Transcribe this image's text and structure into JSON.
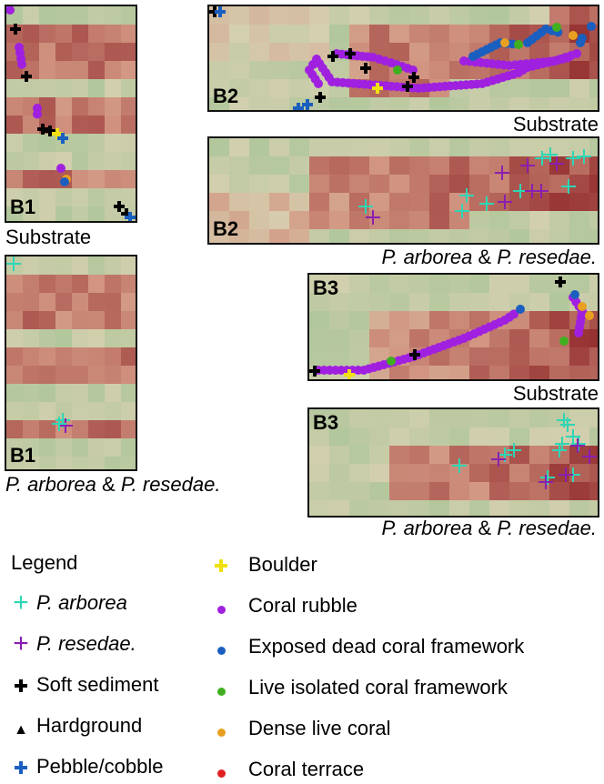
{
  "panels": [
    {
      "id": "b1-substrate",
      "label": "B1",
      "caption": "Substrate"
    },
    {
      "id": "b1-species",
      "label": "B1",
      "caption_a": "P. arborea",
      "caption_amp": " & ",
      "caption_b": "P. resedae."
    },
    {
      "id": "b2-substrate",
      "label": "B2",
      "caption": "Substrate"
    },
    {
      "id": "b2-species",
      "label": "B2",
      "caption_a": "P. arborea",
      "caption_amp": " & ",
      "caption_b": "P. resedae."
    },
    {
      "id": "b3-substrate",
      "label": "B3",
      "caption": "Substrate"
    },
    {
      "id": "b3-species",
      "label": "B3",
      "caption_a": "P. arborea",
      "caption_amp": " & ",
      "caption_b": "P. resedae."
    }
  ],
  "legend": {
    "title": "Legend",
    "left": [
      {
        "label": "P. arborea",
        "symbol": "thin-cross",
        "color": "#2ed6b4",
        "italic": true
      },
      {
        "label": "P. resedae.",
        "symbol": "thin-cross",
        "color": "#8a1fb0",
        "italic": true
      },
      {
        "label": "Soft sediment",
        "symbol": "bold-cross",
        "color": "#000000"
      },
      {
        "label": "Hardground",
        "symbol": "triangle",
        "color": "#000000"
      },
      {
        "label": "Pebble/cobble",
        "symbol": "bold-cross",
        "color": "#1a5fbf"
      }
    ],
    "right": [
      {
        "label": "Boulder",
        "symbol": "bold-cross",
        "color": "#f0e010"
      },
      {
        "label": "Coral rubble",
        "symbol": "dot",
        "color": "#a020e0"
      },
      {
        "label": "Exposed dead coral framework",
        "symbol": "dot",
        "color": "#1a5fbf"
      },
      {
        "label": "Live isolated coral framework",
        "symbol": "dot",
        "color": "#40b020"
      },
      {
        "label": "Dense live coral",
        "symbol": "dot",
        "color": "#e8a020"
      },
      {
        "label": "Coral terrace",
        "symbol": "dot",
        "color": "#e02020"
      }
    ]
  }
}
